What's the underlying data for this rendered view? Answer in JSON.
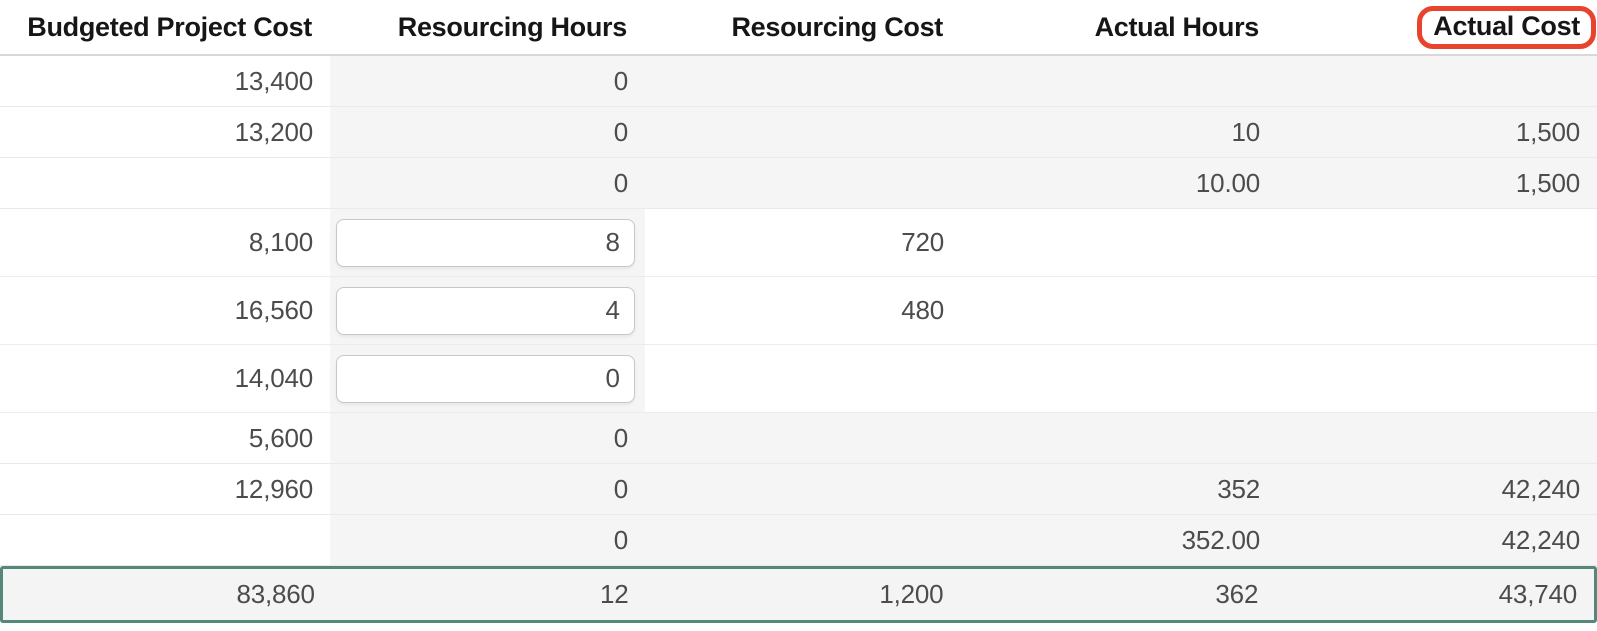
{
  "table": {
    "headers": [
      "Budgeted Project Cost",
      "Resourcing Hours",
      "Resourcing Cost",
      "Actual Hours",
      "Actual Cost"
    ],
    "annotated_header_index": 4,
    "rows": [
      {
        "type": "readonly",
        "cells": [
          "13,400",
          "0",
          "",
          "",
          ""
        ]
      },
      {
        "type": "readonly",
        "cells": [
          "13,200",
          "0",
          "",
          "10",
          "1,500"
        ]
      },
      {
        "type": "readonly",
        "cells": [
          "",
          "0",
          "",
          "10.00",
          "1,500"
        ]
      },
      {
        "type": "editable",
        "input_col": 1,
        "cells": [
          "8,100",
          "8",
          "720",
          "",
          ""
        ]
      },
      {
        "type": "editable",
        "input_col": 1,
        "cells": [
          "16,560",
          "4",
          "480",
          "",
          ""
        ]
      },
      {
        "type": "editable",
        "input_col": 1,
        "cells": [
          "14,040",
          "0",
          "",
          "",
          ""
        ]
      },
      {
        "type": "readonly",
        "cells": [
          "5,600",
          "0",
          "",
          "",
          ""
        ]
      },
      {
        "type": "readonly",
        "cells": [
          "12,960",
          "0",
          "",
          "352",
          "42,240"
        ]
      },
      {
        "type": "readonly",
        "cells": [
          "",
          "0",
          "",
          "352.00",
          "42,240"
        ]
      }
    ],
    "totals": {
      "cells": [
        "83,860",
        "12",
        "1,200",
        "362",
        "43,740"
      ]
    }
  },
  "colors": {
    "readonly_cell_bg": "#f5f5f6",
    "totals_border": "#55887b",
    "annotation": "#e8432c"
  }
}
